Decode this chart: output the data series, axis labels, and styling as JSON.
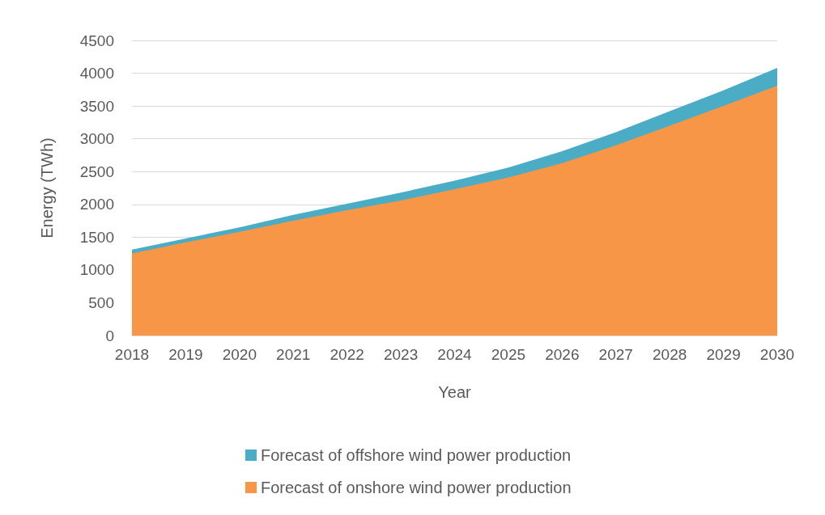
{
  "chart_data": {
    "type": "area",
    "stacked": true,
    "xlabel": "Year",
    "ylabel": "Energy (TWh)",
    "x": [
      2018,
      2019,
      2020,
      2021,
      2022,
      2023,
      2024,
      2025,
      2026,
      2027,
      2028,
      2029,
      2030
    ],
    "xlim": [
      2018,
      2030
    ],
    "xticks": [
      2018,
      2019,
      2020,
      2021,
      2022,
      2023,
      2024,
      2025,
      2026,
      2027,
      2028,
      2029,
      2030
    ],
    "ylim": [
      0,
      4500
    ],
    "yticks": [
      0,
      500,
      1000,
      1500,
      2000,
      2500,
      3000,
      3500,
      4000,
      4500
    ],
    "grid": "y",
    "legend": "bottom",
    "series": [
      {
        "name": "Forecast of onshore wind power production",
        "color": "#f79646",
        "values": [
          1250,
          1420,
          1580,
          1750,
          1910,
          2060,
          2230,
          2410,
          2630,
          2900,
          3200,
          3500,
          3810
        ]
      },
      {
        "name": "Forecast of offshore wind power production",
        "color": "#4bacc6",
        "values": [
          60,
          60,
          70,
          90,
          100,
          120,
          130,
          150,
          180,
          200,
          220,
          240,
          270
        ]
      }
    ]
  }
}
